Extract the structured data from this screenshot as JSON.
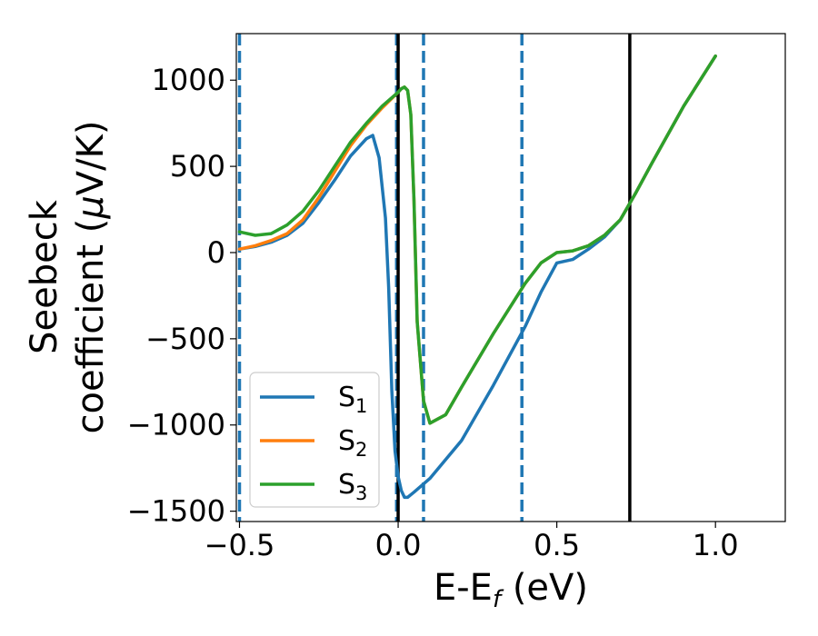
{
  "chart_data": {
    "type": "line",
    "title": "",
    "xlabel": "E-E",
    "xlabel_subscript": "f",
    "xlabel_unit": " (eV)",
    "ylabel_line1": "Seebeck",
    "ylabel_line2": "coefficient  (",
    "ylabel_mu": "μ",
    "ylabel_unit": "V/K)",
    "xlim": [
      -0.51,
      1.22
    ],
    "ylim": [
      -1560,
      1270
    ],
    "xticks": [
      {
        "value": -0.5,
        "label": "−0.5"
      },
      {
        "value": 0.0,
        "label": "0.0"
      },
      {
        "value": 0.5,
        "label": "0.5"
      },
      {
        "value": 1.0,
        "label": "1.0"
      }
    ],
    "yticks": [
      {
        "value": -1500,
        "label": "−1500"
      },
      {
        "value": -1000,
        "label": "−1000"
      },
      {
        "value": -500,
        "label": "−500"
      },
      {
        "value": 0,
        "label": "0"
      },
      {
        "value": 500,
        "label": "500"
      },
      {
        "value": 1000,
        "label": "1000"
      }
    ],
    "grid": false,
    "legend_position": "lower-left",
    "series": [
      {
        "name": "S",
        "subscript": "1",
        "color": "#1f77b4",
        "x": [
          -0.5,
          -0.45,
          -0.4,
          -0.35,
          -0.3,
          -0.25,
          -0.2,
          -0.15,
          -0.1,
          -0.08,
          -0.06,
          -0.04,
          -0.03,
          -0.02,
          -0.01,
          0.0,
          0.01,
          0.02,
          0.03,
          0.05,
          0.1,
          0.2,
          0.3,
          0.4,
          0.45,
          0.5,
          0.55,
          0.6,
          0.65,
          0.7,
          0.75,
          0.8,
          0.9,
          1.0
        ],
        "y": [
          20,
          35,
          60,
          100,
          170,
          290,
          420,
          560,
          660,
          680,
          550,
          200,
          -200,
          -800,
          -1150,
          -1300,
          -1380,
          -1420,
          -1420,
          -1390,
          -1310,
          -1090,
          -770,
          -430,
          -230,
          -60,
          -40,
          20,
          90,
          190,
          350,
          520,
          850,
          1140
        ]
      },
      {
        "name": "S",
        "subscript": "2",
        "color": "#ff7f0e",
        "x": [
          -0.5,
          -0.45,
          -0.4,
          -0.35,
          -0.3,
          -0.25,
          -0.2,
          -0.15,
          -0.1,
          -0.05,
          0.0,
          0.01,
          0.02,
          0.03,
          0.04,
          0.05,
          0.06,
          0.08,
          0.1,
          0.15,
          0.2,
          0.3,
          0.4,
          0.45,
          0.5,
          0.55,
          0.6,
          0.65,
          0.7,
          0.75,
          0.8,
          0.9,
          1.0
        ],
        "y": [
          20,
          40,
          70,
          110,
          190,
          320,
          470,
          620,
          740,
          840,
          930,
          950,
          960,
          940,
          800,
          300,
          -400,
          -860,
          -990,
          -940,
          -780,
          -470,
          -180,
          -60,
          0,
          10,
          40,
          100,
          190,
          350,
          520,
          850,
          1140
        ]
      },
      {
        "name": "S",
        "subscript": "3",
        "color": "#2ca02c",
        "x": [
          -0.5,
          -0.45,
          -0.4,
          -0.35,
          -0.3,
          -0.25,
          -0.2,
          -0.15,
          -0.1,
          -0.05,
          0.0,
          0.01,
          0.02,
          0.03,
          0.04,
          0.05,
          0.06,
          0.08,
          0.1,
          0.15,
          0.2,
          0.3,
          0.4,
          0.45,
          0.5,
          0.55,
          0.6,
          0.65,
          0.7,
          0.75,
          0.8,
          0.9,
          1.0
        ],
        "y": [
          120,
          100,
          110,
          160,
          240,
          360,
          500,
          640,
          750,
          850,
          930,
          950,
          960,
          940,
          800,
          300,
          -400,
          -860,
          -990,
          -940,
          -780,
          -470,
          -180,
          -60,
          0,
          10,
          40,
          100,
          190,
          350,
          520,
          850,
          1140
        ]
      }
    ],
    "vertical_lines": [
      {
        "x": -0.5,
        "style": "dashed",
        "color": "#1f77b4"
      },
      {
        "x": -0.005,
        "style": "dashed",
        "color": "#1f77b4"
      },
      {
        "x": 0.08,
        "style": "dashed",
        "color": "#1f77b4"
      },
      {
        "x": 0.39,
        "style": "dashed",
        "color": "#1f77b4"
      },
      {
        "x": 0.0,
        "style": "solid",
        "color": "#000000"
      },
      {
        "x": 0.73,
        "style": "solid",
        "color": "#000000"
      }
    ]
  }
}
